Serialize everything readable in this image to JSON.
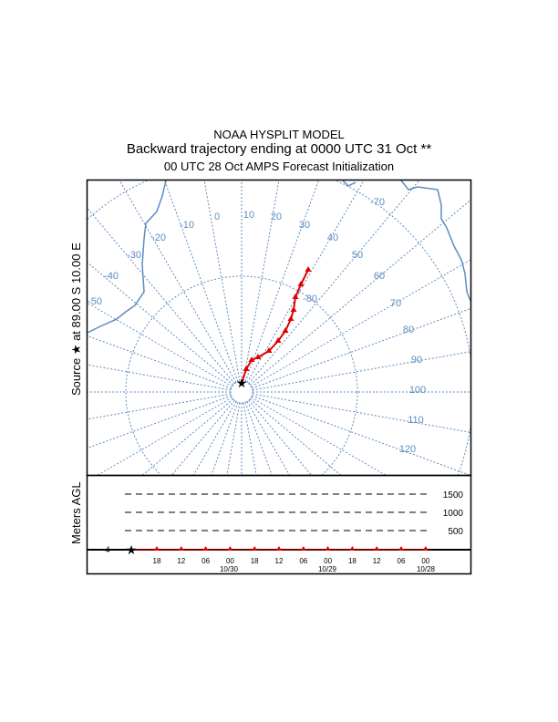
{
  "chart_data": {
    "type": "line",
    "title": "NOAA HYSPLIT MODEL",
    "subtitle": "Backward trajectory ending at 0000 UTC 31 Oct **",
    "subtitle2": "00 UTC 28 Oct    AMPS  Forecast Initialization",
    "map_ylabel": "Source ★ at   89.00 S  10.00 E",
    "source": {
      "lat": -89.0,
      "lon": 10.0
    },
    "longitude_labels": [
      "-50",
      "-40",
      "-30",
      "-20",
      "-10",
      "0",
      "10",
      "20",
      "30",
      "40",
      "50",
      "60",
      "70",
      "80",
      "90",
      "100",
      "110",
      "120"
    ],
    "latitude_labels": [
      "-70",
      "-80"
    ],
    "trajectory_pixels_note": "",
    "trajectory": [
      [
        0,
        0
      ],
      [
        0.9,
        16
      ],
      [
        1.4,
        24
      ],
      [
        1.7,
        32
      ],
      [
        2.5,
        41
      ],
      [
        3.5,
        45
      ],
      [
        4.6,
        46
      ],
      [
        5.8,
        45
      ],
      [
        6.6,
        43
      ],
      [
        7.7,
        41
      ],
      [
        8.8,
        40
      ],
      [
        10.2,
        38
      ]
    ],
    "height_panel": {
      "ylabel": "Meters AGL",
      "levels": [
        "1500",
        "1000",
        "500"
      ],
      "height_value_label": "4",
      "time_labels": [
        "18",
        "12",
        "06",
        "00",
        "18",
        "12",
        "06",
        "00",
        "18",
        "12",
        "06",
        "00"
      ],
      "date_labels": [
        "10/30",
        "10/29",
        "10/28"
      ],
      "heights": [
        4,
        4,
        4,
        4,
        4,
        4,
        4,
        4,
        4,
        4,
        4,
        4,
        4
      ]
    },
    "colors": {
      "grid": "#5b8cc0",
      "trajectory": "#e00000"
    }
  }
}
